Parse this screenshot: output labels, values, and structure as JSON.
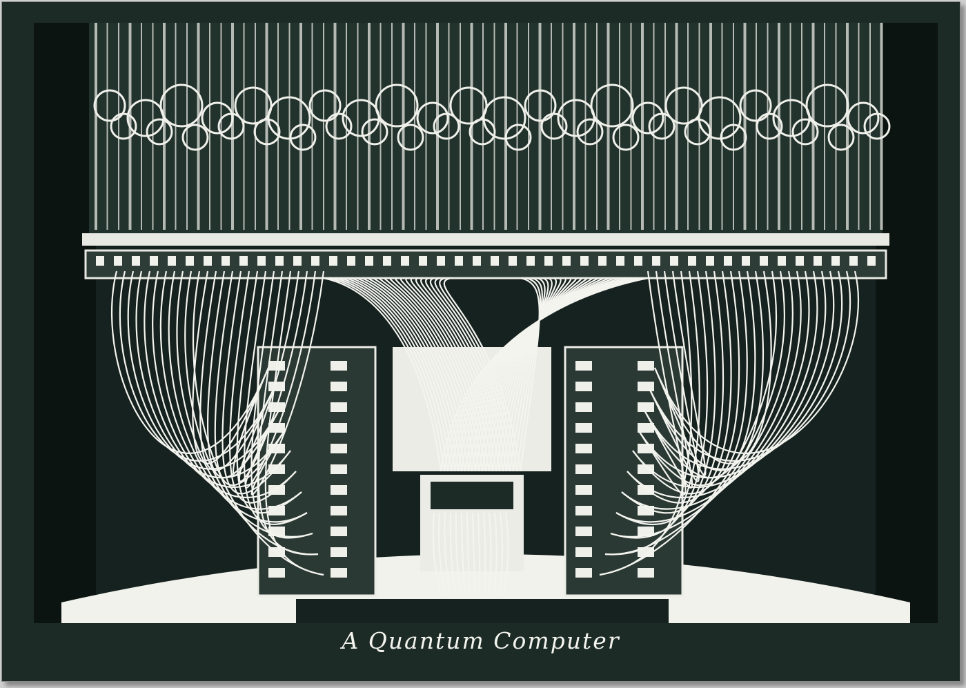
{
  "caption": "A Quantum Computer",
  "colors": {
    "background": "#1d2b27",
    "foreground": "#f4f4ef",
    "outer": "#cfcfcf"
  },
  "image": {
    "subject": "quantum-computer-dilution-refrigerator",
    "style": "high-contrast inverted photograph"
  }
}
